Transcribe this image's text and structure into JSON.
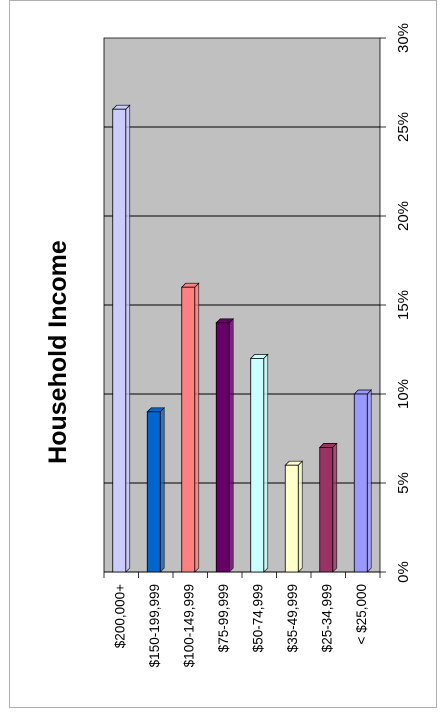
{
  "chart_data": {
    "type": "bar",
    "orientation": "rotated-90",
    "title": "Household Income",
    "categories": [
      "$200,000+",
      "$150-199,999",
      "$100-149,999",
      "$75-99,999",
      "$50-74,999",
      "$35-49,999",
      "$25-34,999",
      "< $25,000"
    ],
    "values": [
      26,
      9,
      16,
      14,
      12,
      6,
      7,
      10
    ],
    "value_unit": "%",
    "ylim": [
      0,
      30
    ],
    "ticks": [
      "0%",
      "5%",
      "10%",
      "15%",
      "20%",
      "25%",
      "30%"
    ],
    "tick_values": [
      0,
      5,
      10,
      15,
      20,
      25,
      30
    ],
    "grid": true,
    "legend": "none",
    "colors": [
      "#ccccff",
      "#0066cc",
      "#ff8080",
      "#660066",
      "#ccffff",
      "#ffffcc",
      "#993366",
      "#9999ff"
    ]
  }
}
